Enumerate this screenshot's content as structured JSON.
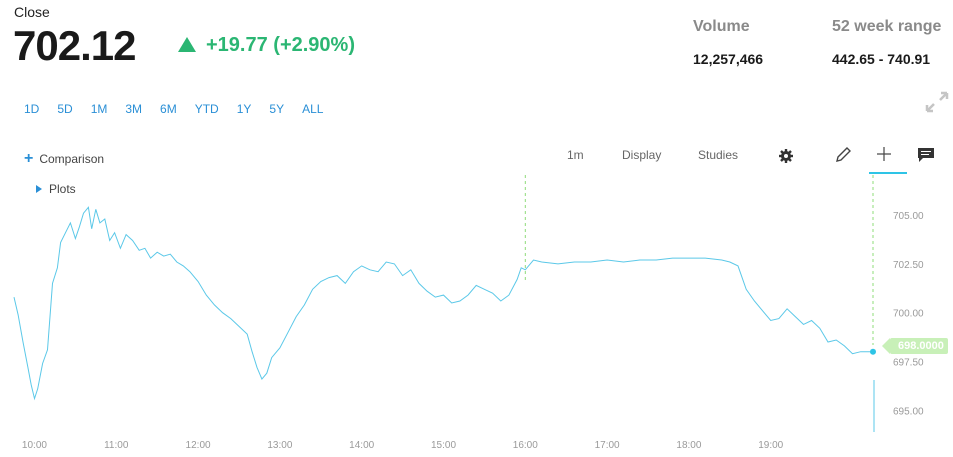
{
  "quote": {
    "close_label": "Close",
    "price": "702.12",
    "change": "+19.77 (+2.90%)",
    "volume_label": "Volume",
    "volume": "12,257,466",
    "range_label": "52 week range",
    "range": "442.65 - 740.91"
  },
  "ranges": [
    "1D",
    "5D",
    "1M",
    "3M",
    "6M",
    "YTD",
    "1Y",
    "5Y",
    "ALL"
  ],
  "controls": {
    "comparison": "Comparison",
    "plots": "Plots",
    "interval": "1m",
    "display": "Display",
    "studies": "Studies"
  },
  "colors": {
    "line": "#5bc8e8",
    "up": "#2bb673",
    "link": "#2a8fd6",
    "current_tag": "#c8f0b8"
  },
  "chart_data": {
    "type": "line",
    "x_ticks": [
      "10:00",
      "11:00",
      "12:00",
      "13:00",
      "14:00",
      "15:00",
      "16:00",
      "17:00",
      "18:00",
      "19:00"
    ],
    "y_ticks": [
      "705.00",
      "702.50",
      "700.00",
      "697.50",
      "695.00"
    ],
    "ylim": [
      694.4,
      706.8
    ],
    "xlim": [
      9.75,
      20.25
    ],
    "current_value": "698.0000",
    "x": [
      9.75,
      9.8,
      9.86,
      9.92,
      9.96,
      10.0,
      10.04,
      10.1,
      10.16,
      10.22,
      10.28,
      10.32,
      10.38,
      10.44,
      10.5,
      10.55,
      10.6,
      10.66,
      10.7,
      10.75,
      10.8,
      10.86,
      10.92,
      10.98,
      11.05,
      11.12,
      11.2,
      11.28,
      11.35,
      11.42,
      11.5,
      11.58,
      11.66,
      11.74,
      11.82,
      11.9,
      12.0,
      12.1,
      12.2,
      12.3,
      12.4,
      12.5,
      12.6,
      12.66,
      12.72,
      12.78,
      12.84,
      12.9,
      13.0,
      13.1,
      13.2,
      13.3,
      13.4,
      13.5,
      13.6,
      13.7,
      13.8,
      13.9,
      14.0,
      14.1,
      14.2,
      14.3,
      14.4,
      14.5,
      14.6,
      14.7,
      14.8,
      14.9,
      15.0,
      15.1,
      15.2,
      15.3,
      15.4,
      15.5,
      15.6,
      15.7,
      15.8,
      15.9,
      15.95,
      16.0,
      16.1,
      16.2,
      16.4,
      16.6,
      16.8,
      17.0,
      17.2,
      17.4,
      17.6,
      17.8,
      18.0,
      18.2,
      18.4,
      18.5,
      18.6,
      18.7,
      18.8,
      18.9,
      19.0,
      19.1,
      19.2,
      19.3,
      19.4,
      19.5,
      19.6,
      19.7,
      19.8,
      19.9,
      20.0,
      20.1,
      20.25
    ],
    "y": [
      700.8,
      699.9,
      698.5,
      697.2,
      696.3,
      695.6,
      696.1,
      697.4,
      698.1,
      701.5,
      702.3,
      703.6,
      704.1,
      704.6,
      703.8,
      704.4,
      705.1,
      705.4,
      704.3,
      705.3,
      704.6,
      704.8,
      703.7,
      704.1,
      703.3,
      704.0,
      703.7,
      703.2,
      703.3,
      702.8,
      703.1,
      702.9,
      703.0,
      702.6,
      702.4,
      702.1,
      701.6,
      700.9,
      700.4,
      700.0,
      699.7,
      699.3,
      698.9,
      698.0,
      697.2,
      696.6,
      696.9,
      697.7,
      698.2,
      699.0,
      699.8,
      700.4,
      701.2,
      701.6,
      701.8,
      701.9,
      701.5,
      702.1,
      702.4,
      702.2,
      702.1,
      702.6,
      702.5,
      701.9,
      702.2,
      701.5,
      701.1,
      700.8,
      700.9,
      700.5,
      700.6,
      700.9,
      701.4,
      701.2,
      701.0,
      700.6,
      700.9,
      701.7,
      702.3,
      702.2,
      702.7,
      702.6,
      702.5,
      702.6,
      702.6,
      702.7,
      702.6,
      702.7,
      702.7,
      702.8,
      702.8,
      702.8,
      702.7,
      702.6,
      702.4,
      701.2,
      700.6,
      700.1,
      699.6,
      699.7,
      700.2,
      699.8,
      699.4,
      699.6,
      699.2,
      698.5,
      698.6,
      698.3,
      697.9,
      698.0,
      698.0
    ]
  }
}
